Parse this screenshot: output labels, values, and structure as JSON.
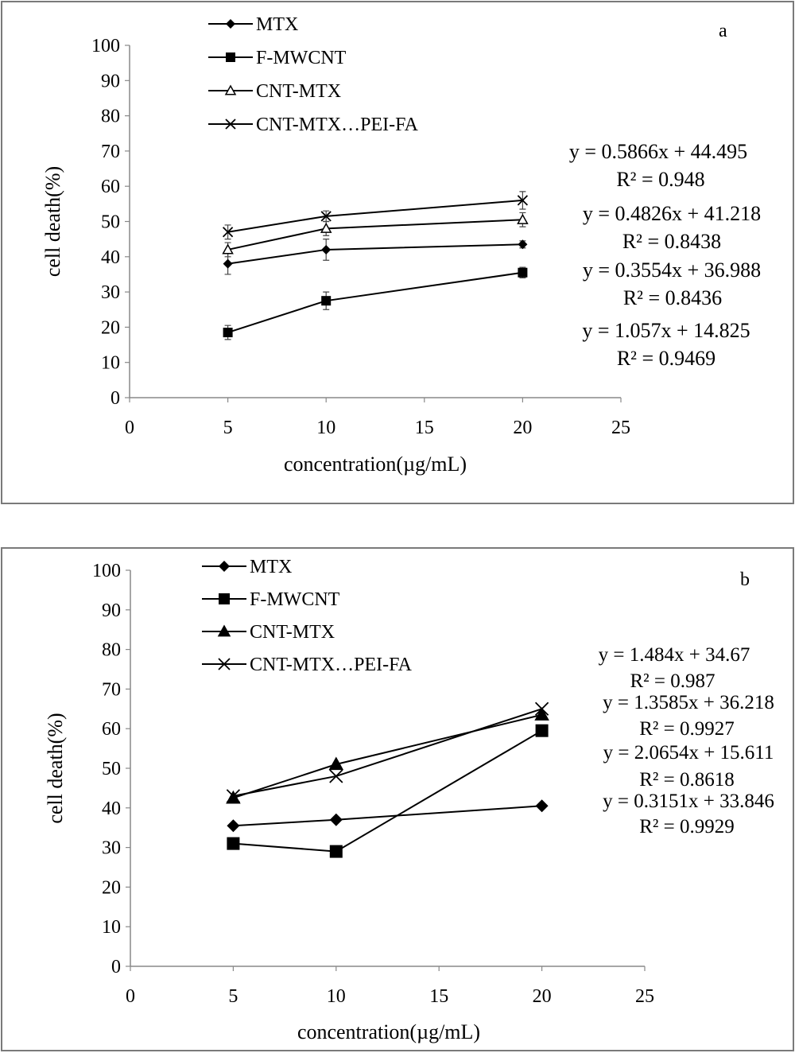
{
  "chart_data": [
    {
      "type": "line",
      "panel_label": "a",
      "xlabel": "concentration(µg/mL)",
      "ylabel": "cell death(%)",
      "xlim": [
        0,
        25
      ],
      "ylim": [
        0,
        100
      ],
      "xticks": [
        "0",
        "5",
        "10",
        "15",
        "20",
        "25"
      ],
      "yticks": [
        "0",
        "10",
        "20",
        "30",
        "40",
        "50",
        "60",
        "70",
        "80",
        "90",
        "100"
      ],
      "grid": false,
      "legend_position": "top-left",
      "x": [
        5,
        10,
        20
      ],
      "series": [
        {
          "name": "MTX",
          "marker": "diamond",
          "values": [
            38,
            42,
            43.5
          ],
          "errors": [
            3,
            3,
            1
          ]
        },
        {
          "name": "F-MWCNT",
          "marker": "square",
          "values": [
            18.5,
            27.5,
            35.5
          ],
          "errors": [
            2,
            2.5,
            1.5
          ]
        },
        {
          "name": "CNT-MTX",
          "marker": "triangle-open",
          "values": [
            42,
            48,
            50.5
          ],
          "errors": [
            2,
            2,
            2
          ]
        },
        {
          "name": "CNT-MTX…PEI-FA",
          "marker": "cross",
          "values": [
            47,
            51.5,
            56
          ],
          "errors": [
            2,
            1.5,
            2.5
          ]
        }
      ],
      "trendline_labels": [
        {
          "equation": "y = 0.5866x + 44.495",
          "r2": "R² = 0.948"
        },
        {
          "equation": "y = 0.4826x + 41.218",
          "r2": "R² = 0.8438"
        },
        {
          "equation": "y = 0.3554x + 36.988",
          "r2": "R² = 0.8436"
        },
        {
          "equation": "y = 1.057x + 14.825",
          "r2": "R² = 0.9469"
        }
      ]
    },
    {
      "type": "line",
      "panel_label": "b",
      "xlabel": "concentration(µg/mL)",
      "ylabel": "cell death(%)",
      "xlim": [
        0,
        25
      ],
      "ylim": [
        0,
        100
      ],
      "xticks": [
        "0",
        "5",
        "10",
        "15",
        "20",
        "25"
      ],
      "yticks": [
        "0",
        "10",
        "20",
        "30",
        "40",
        "50",
        "60",
        "70",
        "80",
        "90",
        "100"
      ],
      "grid": false,
      "legend_position": "top-left",
      "x": [
        5,
        10,
        20
      ],
      "series": [
        {
          "name": "MTX",
          "marker": "diamond",
          "values": [
            35.5,
            37,
            40.5
          ]
        },
        {
          "name": "F-MWCNT",
          "marker": "square",
          "values": [
            31,
            29,
            59.5
          ]
        },
        {
          "name": "CNT-MTX",
          "marker": "triangle",
          "values": [
            42.5,
            51,
            63.5
          ]
        },
        {
          "name": "CNT-MTX…PEI-FA",
          "marker": "cross",
          "values": [
            43,
            48,
            65
          ]
        }
      ],
      "trendline_labels": [
        {
          "equation": "y = 1.484x + 34.67",
          "r2": "R² = 0.987"
        },
        {
          "equation": "y = 1.3585x + 36.218",
          "r2": "R² = 0.9927"
        },
        {
          "equation": "y = 2.0654x + 15.611",
          "r2": "R² = 0.8618"
        },
        {
          "equation": "y = 0.3151x + 33.846",
          "r2": "R² = 0.9929"
        }
      ]
    }
  ]
}
